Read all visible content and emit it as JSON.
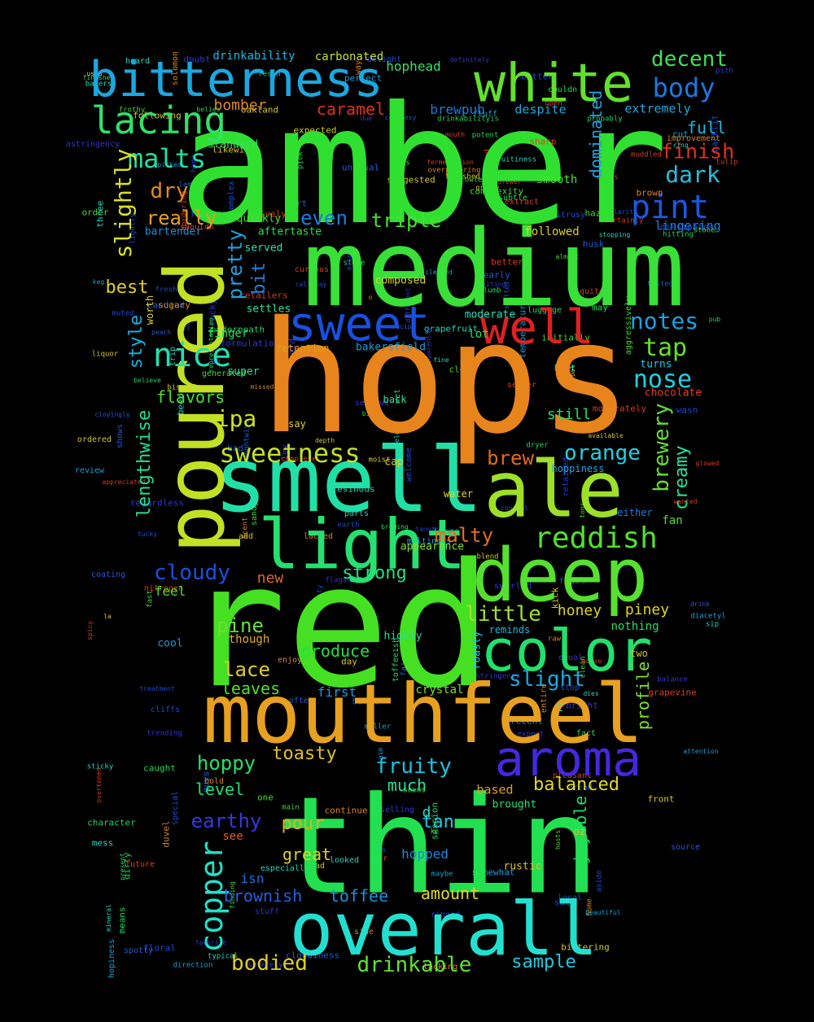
{
  "words": [
    {
      "text": "amber",
      "color": "#30e030"
    },
    {
      "text": "hops",
      "color": "#e8841c"
    },
    {
      "text": "red",
      "color": "#46e022"
    },
    {
      "text": "thin",
      "color": "#22e050"
    },
    {
      "text": "medium",
      "color": "#38e038"
    },
    {
      "text": "smell",
      "color": "#20e0a8"
    },
    {
      "text": "poured",
      "color": "#c2e024"
    },
    {
      "text": "mouthfeel",
      "color": "#e8a020"
    },
    {
      "text": "overall",
      "color": "#22e0d0"
    },
    {
      "text": "ale",
      "color": "#9ce028"
    },
    {
      "text": "deep",
      "color": "#56e030"
    },
    {
      "text": "light",
      "color": "#26e070"
    },
    {
      "text": "color",
      "color": "#22e06c"
    },
    {
      "text": "white",
      "color": "#62e02c"
    },
    {
      "text": "bitterness",
      "color": "#1aa8e0"
    },
    {
      "text": "aroma",
      "color": "#4428e0"
    },
    {
      "text": "sweet",
      "color": "#1a50e0"
    },
    {
      "text": "well",
      "color": "#e02020"
    },
    {
      "text": "lacing",
      "color": "#32e068"
    },
    {
      "text": "nice",
      "color": "#22e0b0"
    },
    {
      "text": "reddish",
      "color": "#52e030"
    },
    {
      "text": "sweetness",
      "color": "#c0e028"
    },
    {
      "text": "copper",
      "color": "#22e0c8"
    },
    {
      "text": "pint",
      "color": "#1a58e0"
    },
    {
      "text": "malts",
      "color": "#22e0a0"
    },
    {
      "text": "body",
      "color": "#1a78e0"
    },
    {
      "text": "decent",
      "color": "#3ce05c"
    },
    {
      "text": "notes",
      "color": "#1aa0e0"
    },
    {
      "text": "tap",
      "color": "#64e02c"
    },
    {
      "text": "nose",
      "color": "#20d0e0"
    },
    {
      "text": "dark",
      "color": "#22c0e0"
    },
    {
      "text": "finish",
      "color": "#e03020"
    },
    {
      "text": "slightly",
      "color": "#d8e020"
    },
    {
      "text": "ipa",
      "color": "#d0e020"
    },
    {
      "text": "dry",
      "color": "#e08a20"
    },
    {
      "text": "really",
      "color": "#e0a020"
    },
    {
      "text": "even",
      "color": "#1a7ce0"
    },
    {
      "text": "triple",
      "color": "#46e030"
    },
    {
      "text": "pretty",
      "color": "#1aa0e0"
    },
    {
      "text": "best",
      "color": "#e0d020"
    },
    {
      "text": "bit",
      "color": "#2080e0"
    },
    {
      "text": "style",
      "color": "#1ab0e0"
    },
    {
      "text": "lengthwise",
      "color": "#22e08c"
    },
    {
      "text": "flavors",
      "color": "#4ce030"
    },
    {
      "text": "orange",
      "color": "#22d0e0"
    },
    {
      "text": "brewery",
      "color": "#62e030"
    },
    {
      "text": "creamy",
      "color": "#22e0a0"
    },
    {
      "text": "brew",
      "color": "#e06a20"
    },
    {
      "text": "cloudy",
      "color": "#1a50e0"
    },
    {
      "text": "strong",
      "color": "#22e080"
    },
    {
      "text": "malty",
      "color": "#e07020"
    },
    {
      "text": "little",
      "color": "#a0e028"
    },
    {
      "text": "pine",
      "color": "#68e030"
    },
    {
      "text": "lace",
      "color": "#e0d020"
    },
    {
      "text": "leaves",
      "color": "#4ce030"
    },
    {
      "text": "produce",
      "color": "#22e048"
    },
    {
      "text": "slight",
      "color": "#1aa8e0"
    },
    {
      "text": "profile",
      "color": "#80e028"
    },
    {
      "text": "hoppy",
      "color": "#22e068"
    },
    {
      "text": "toasty",
      "color": "#e0c020"
    },
    {
      "text": "fruity",
      "color": "#1ac0e0"
    },
    {
      "text": "much",
      "color": "#22e0a0"
    },
    {
      "text": "balanced",
      "color": "#e0d820"
    },
    {
      "text": "earthy",
      "color": "#3438e0"
    },
    {
      "text": "pour",
      "color": "#e0b020"
    },
    {
      "text": "tan",
      "color": "#1ac8e0"
    },
    {
      "text": "great",
      "color": "#e0d020"
    },
    {
      "text": "level",
      "color": "#22e070"
    },
    {
      "text": "enjoyable",
      "color": "#22e060"
    },
    {
      "text": "brownish",
      "color": "#2460e0"
    },
    {
      "text": "toffee",
      "color": "#1a90e0"
    },
    {
      "text": "amount",
      "color": "#e0d820"
    },
    {
      "text": "bodied",
      "color": "#e0d020"
    },
    {
      "text": "drinkable",
      "color": "#62e030"
    },
    {
      "text": "sample",
      "color": "#20c8e0"
    },
    {
      "text": "honey",
      "color": "#e0d020"
    },
    {
      "text": "piney",
      "color": "#e0d820"
    },
    {
      "text": "caramel",
      "color": "#e03020"
    },
    {
      "text": "bomber",
      "color": "#e08a20"
    },
    {
      "text": "full",
      "color": "#1ab8e0"
    },
    {
      "text": "dominated",
      "color": "#22a0e0"
    },
    {
      "text": "hophead",
      "color": "#32e068"
    },
    {
      "text": "carbonated",
      "color": "#c8e028"
    },
    {
      "text": "drinkability",
      "color": "#1ab8e0"
    },
    {
      "text": "brewpub",
      "color": "#1a7ce0"
    },
    {
      "text": "despite",
      "color": "#1aa8e0"
    },
    {
      "text": "extremely",
      "color": "#1aa8e0"
    },
    {
      "text": "lingering",
      "color": "#1a80e0"
    },
    {
      "text": "followed",
      "color": "#e0d020"
    },
    {
      "text": "served",
      "color": "#22e0b8"
    },
    {
      "text": "aftertaste",
      "color": "#22e048"
    },
    {
      "text": "quickly",
      "color": "#4ce030"
    },
    {
      "text": "bartender",
      "color": "#1a90e0"
    },
    {
      "text": "standard",
      "color": "#32e068"
    },
    {
      "text": "smooth",
      "color": "#4ce030"
    },
    {
      "text": "settles",
      "color": "#22e0a0"
    },
    {
      "text": "finger",
      "color": "#22e060"
    },
    {
      "text": "lot",
      "color": "#22e060"
    },
    {
      "text": "composed",
      "color": "#e0d020"
    },
    {
      "text": "moderate",
      "color": "#22e0b8"
    },
    {
      "text": "bakersfield",
      "color": "#1a9ce0"
    },
    {
      "text": "retention",
      "color": "#e0a020"
    },
    {
      "text": "chocolate",
      "color": "#e04020"
    },
    {
      "text": "turns",
      "color": "#1ac8e0"
    },
    {
      "text": "still",
      "color": "#22e070"
    },
    {
      "text": "super",
      "color": "#22e0a0"
    },
    {
      "text": "feel",
      "color": "#4ce030"
    },
    {
      "text": "new",
      "color": "#e06a20"
    },
    {
      "text": "appearance",
      "color": "#80e028"
    },
    {
      "text": "say",
      "color": "#e0d020"
    },
    {
      "text": "nothing",
      "color": "#22e060"
    },
    {
      "text": "reminds",
      "color": "#1ab8e0"
    },
    {
      "text": "first",
      "color": "#1a9ce0"
    },
    {
      "text": "crystal",
      "color": "#80e028"
    },
    {
      "text": "hopped",
      "color": "#1a88e0"
    },
    {
      "text": "isn",
      "color": "#1a70e0"
    },
    {
      "text": "though",
      "color": "#e0b020"
    },
    {
      "text": "cool",
      "color": "#1a9ce0"
    },
    {
      "text": "hoppiness",
      "color": "#1aa8e0"
    },
    {
      "text": "either",
      "color": "#1a80e0"
    },
    {
      "text": "fan",
      "color": "#4ce030"
    },
    {
      "text": "two",
      "color": "#e0c020"
    },
    {
      "text": "oz",
      "color": "#e0c020"
    },
    {
      "text": "rustic",
      "color": "#e0c020"
    },
    {
      "text": "see",
      "color": "#e06020"
    },
    {
      "text": "brought",
      "color": "#22e070"
    },
    {
      "text": "based",
      "color": "#e0a020"
    },
    {
      "text": "cap",
      "color": "#e0d020"
    },
    {
      "text": "water",
      "color": "#e0d820"
    },
    {
      "text": "brown",
      "color": "#e08020"
    },
    {
      "text": "sharp",
      "color": "#e04020"
    },
    {
      "text": "highly",
      "color": "#22e0a0"
    },
    {
      "text": "back",
      "color": "#22e0a0"
    },
    {
      "text": "roasty",
      "color": "#1ac8e0"
    },
    {
      "text": "worth",
      "color": "#e0d020"
    },
    {
      "text": "d",
      "color": "#22e0c8"
    },
    {
      "text": "t",
      "color": "#22e0c8"
    }
  ],
  "small_words": [
    "fermentation",
    "future",
    "house",
    "extract",
    "means",
    "stone",
    "lively",
    "fine",
    "expected",
    "flowery",
    "brewer",
    "shows",
    "complete",
    "moist",
    "sugary",
    "source",
    "liquor",
    "expect",
    "nutty",
    "dr",
    "aside",
    "entire",
    "clarity",
    "session",
    "muted",
    "underneath",
    "spicy",
    "held",
    "hint",
    "missed",
    "lightly",
    "serious",
    "unusual",
    "balance",
    "parts",
    "lacking",
    "spotty",
    "pleasant",
    "open",
    "subtle",
    "apparently",
    "cloyingly",
    "initially",
    "certainly",
    "mouth",
    "earth",
    "retained",
    "also",
    "hosts",
    "curious",
    "somewhat",
    "available",
    "kick",
    "tart",
    "luggage",
    "diacetyl",
    "overpowering",
    "maltiness",
    "beer",
    "hum",
    "calloway",
    "cloudiness",
    "appreciated",
    "add",
    "control",
    "delight",
    "slow",
    "doubt",
    "fades",
    "fluff",
    "drink",
    "keg",
    "sandy",
    "believe",
    "pick",
    "main",
    "seller",
    "quite",
    "muddled",
    "dies",
    "aim",
    "review",
    "welcome",
    "burst",
    "beautiful",
    "grapevine",
    "hazed",
    "brick",
    "tucky",
    "visiting",
    "raw",
    "solomon",
    "used",
    "finishes",
    "fresh",
    "coating",
    "especially",
    "trip",
    "bittering",
    "temperature",
    "formulation",
    "old",
    "generated",
    "grapefruit",
    "stop",
    "tulip",
    "biscuity",
    "bordering",
    "treatment",
    "fast",
    "atop",
    "complexity",
    "courtesy",
    "bold",
    "swirled",
    "looked",
    "astringency",
    "oakland",
    "ring",
    "duvel",
    "toasted",
    "special",
    "consumed",
    "large",
    "picked",
    "definitely",
    "day",
    "backlit",
    "nitrogen",
    "shouldn",
    "bread",
    "stuff",
    "dissipates",
    "clear",
    "lemon",
    "fact",
    "seems",
    "aggressively",
    "home",
    "plumb",
    "resinous",
    "character",
    "overtones",
    "attention",
    "blend",
    "tons",
    "cleaned",
    "grassy",
    "glowed",
    "severely",
    "cliffs",
    "recent",
    "likewise",
    "uh",
    "ordered",
    "toffeeish",
    "improvement",
    "la",
    "trending",
    "due",
    "moderately",
    "bad",
    "herbal",
    "selling",
    "front",
    "pith",
    "heard",
    "favorite",
    "complex",
    "bitter",
    "typical",
    "kc",
    "side",
    "mineral",
    "three",
    "glad",
    "salt",
    "almost",
    "maybe",
    "way",
    "probably",
    "following",
    "ll",
    "one",
    "regardless",
    "mess",
    "scent",
    "nearly",
    "caught",
    "may",
    "multigrain",
    "suggested",
    "order",
    "drinkabilityis",
    "resin",
    "pub",
    "representation",
    "tannins",
    "bright",
    "better",
    "often",
    "brewing",
    "present",
    "clean",
    "guys",
    "wet",
    "wanted",
    "sip",
    "sticky",
    "tasted",
    "cut",
    "citrusy",
    "couldn",
    "candied",
    "equal",
    "ringed",
    "spotted",
    "peach",
    "perfect",
    "growler",
    "hitting",
    "big",
    "hopiness",
    "lenghtwise",
    "fruitiness",
    "dirty",
    "belies",
    "rocky",
    "local",
    "stopping",
    "floral",
    "forest",
    "finding",
    "different",
    "miller",
    "recipe",
    "o",
    "asstringency",
    "dryer",
    "bakers",
    "sure",
    "wasn",
    "enjoy",
    "frothy",
    "retailers",
    "store",
    "fair",
    "areas",
    "continue",
    "direction",
    "potent",
    "lacked",
    "huge",
    "husk",
    "depth",
    "finished",
    "flagship",
    "m",
    "s"
  ]
}
